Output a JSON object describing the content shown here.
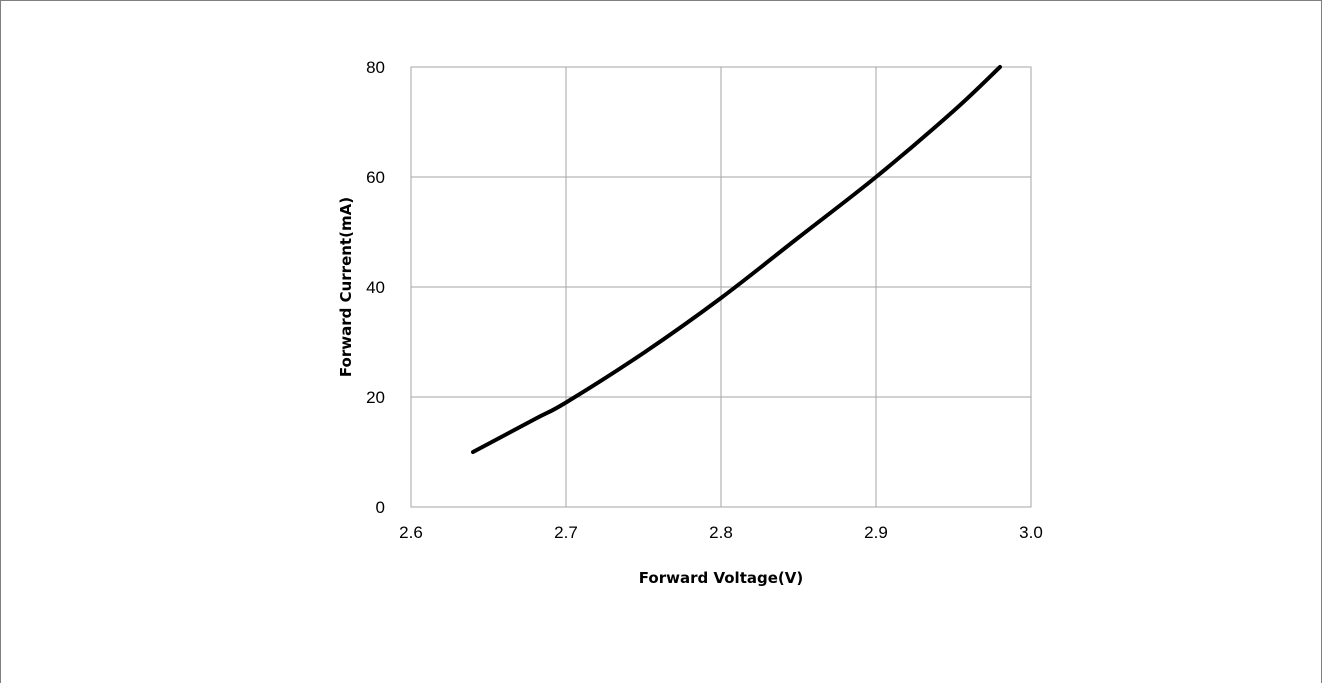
{
  "chart_data": {
    "type": "line",
    "title": "",
    "xlabel": "Forward Voltage(V)",
    "ylabel": "Forward Current(mA)",
    "xlim": [
      2.6,
      3.0
    ],
    "ylim": [
      0,
      80
    ],
    "x_ticks": [
      "2.6",
      "2.7",
      "2.8",
      "2.9",
      "3.0"
    ],
    "y_ticks": [
      "0",
      "20",
      "40",
      "60",
      "80"
    ],
    "grid": true,
    "legend": "none",
    "line_color": "#000000",
    "grid_color": "#a6a6a6",
    "series": [
      {
        "x": [
          2.64,
          2.68,
          2.7,
          2.75,
          2.8,
          2.85,
          2.9,
          2.95,
          2.98
        ],
        "y": [
          10,
          16,
          19,
          28,
          38,
          49,
          60,
          72,
          80
        ]
      }
    ]
  }
}
